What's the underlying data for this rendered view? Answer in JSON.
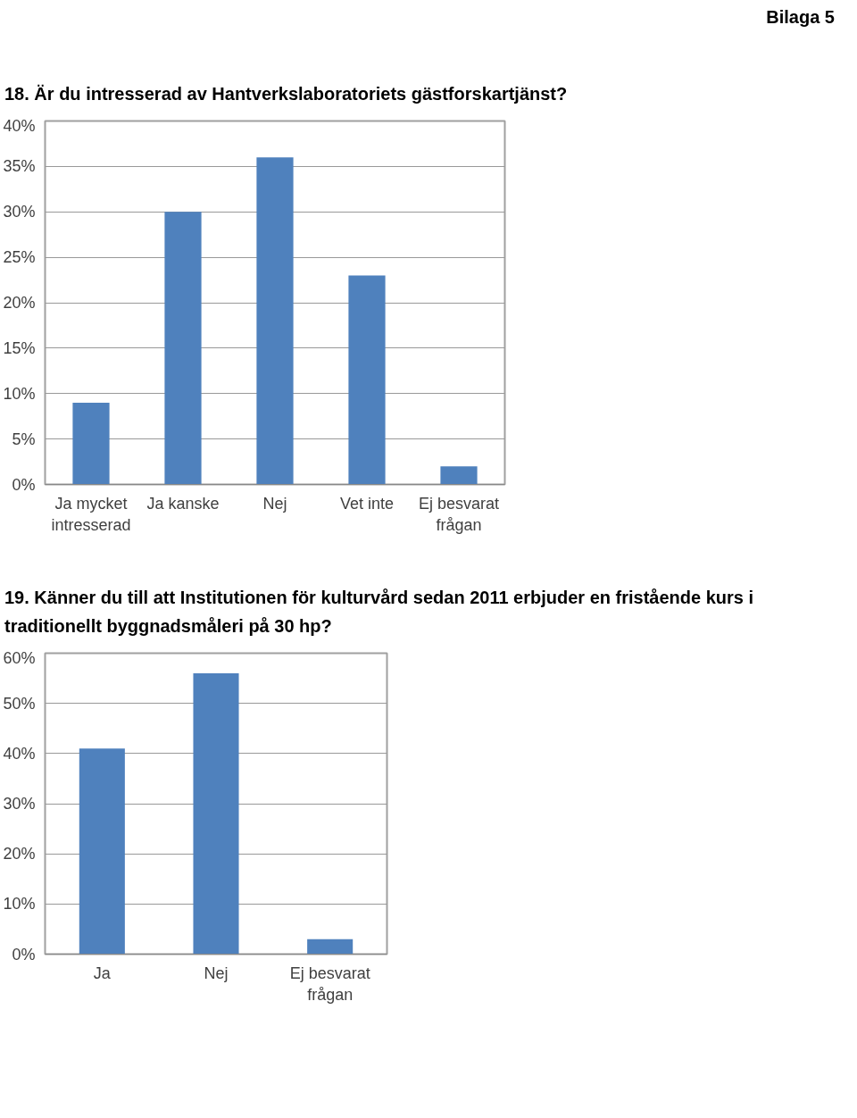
{
  "chart_data": [
    {
      "type": "bar",
      "title": "18. Är du intresserad av Hantverkslaboratoriets gästforskartjänst?",
      "annotations": [
        "Bilaga 5"
      ],
      "categories": [
        "Ja mycket\nintresserad",
        "Ja kanske",
        "Nej",
        "Vet inte",
        "Ej besvarat\nfrågan"
      ],
      "values": [
        9,
        30,
        36,
        23,
        2
      ],
      "color": "#4f81bd",
      "ylim": [
        0,
        40
      ],
      "yticks": [
        {
          "value": 0,
          "label": "0%"
        },
        {
          "value": 5,
          "label": "5%"
        },
        {
          "value": 10,
          "label": "10%"
        },
        {
          "value": 15,
          "label": "15%"
        },
        {
          "value": 20,
          "label": "20%"
        },
        {
          "value": 25,
          "label": "25%"
        },
        {
          "value": 30,
          "label": "30%"
        },
        {
          "value": 35,
          "label": "35%"
        },
        {
          "value": 40,
          "label": "40%"
        }
      ],
      "grid": "y"
    },
    {
      "type": "bar",
      "title": "19. Känner du till att Institutionen för kulturvård sedan 2011 erbjuder en fristående kurs i traditionellt byggnadsmåleri på 30 hp?",
      "categories": [
        "Ja",
        "Nej",
        "Ej besvarat\nfrågan"
      ],
      "values": [
        41,
        56,
        3
      ],
      "color": "#4f81bd",
      "ylim": [
        0,
        60
      ],
      "yticks": [
        {
          "value": 0,
          "label": "0%"
        },
        {
          "value": 10,
          "label": "10%"
        },
        {
          "value": 20,
          "label": "20%"
        },
        {
          "value": 30,
          "label": "30%"
        },
        {
          "value": 40,
          "label": "40%"
        },
        {
          "value": 50,
          "label": "50%"
        },
        {
          "value": 60,
          "label": "60%"
        }
      ],
      "grid": "y"
    }
  ]
}
